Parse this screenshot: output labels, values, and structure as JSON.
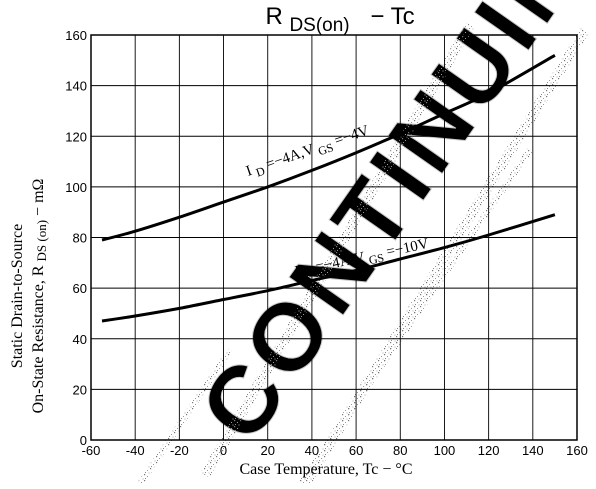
{
  "chart_data": {
    "type": "line",
    "title": {
      "prefix": "R",
      "subscript": "DS(on)",
      "suffix": "− Tc"
    },
    "xlabel": "Case Temperature, Tc  −  °C",
    "ylabel_line1": "Static Drain-to-Source",
    "ylabel_line2": {
      "prefix": "On-State Resistance, R",
      "subscript": "DS (on)",
      "suffix": "  −  mΩ"
    },
    "xlim": [
      -60,
      160
    ],
    "ylim": [
      0,
      160
    ],
    "x_ticks": [
      "-60",
      "-40",
      "-20",
      "0",
      "20",
      "40",
      "60",
      "80",
      "100",
      "120",
      "140",
      "160"
    ],
    "y_ticks": [
      "0",
      "20",
      "40",
      "60",
      "80",
      "100",
      "120",
      "140",
      "160"
    ],
    "grid": true,
    "series": [
      {
        "label": {
          "i": "I",
          "i_sub": "D",
          "mid": "=−4A,V",
          "v_sub": "GS",
          "end": "=−4V"
        },
        "x": [
          -55,
          -40,
          -20,
          0,
          20,
          40,
          60,
          80,
          100,
          120,
          150
        ],
        "y": [
          79,
          82.5,
          88,
          94,
          100,
          106.5,
          113.5,
          121,
          129,
          137,
          152
        ]
      },
      {
        "label": {
          "i": "I",
          "i_sub": "D",
          "mid": "=−4A,V",
          "v_sub": "GS",
          "end": "=−10V"
        },
        "x": [
          -55,
          -40,
          -20,
          0,
          20,
          40,
          60,
          80,
          100,
          120,
          150
        ],
        "y": [
          47,
          49,
          52,
          55.5,
          59,
          63,
          67,
          71.5,
          76,
          81,
          89
        ]
      }
    ],
    "watermark": "CONTINUING"
  }
}
